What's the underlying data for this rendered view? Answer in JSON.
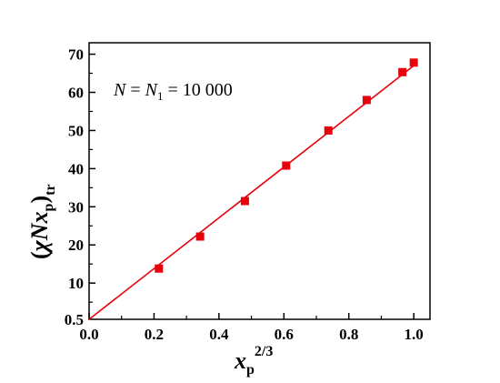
{
  "chart_data": {
    "type": "scatter",
    "xlabel": {
      "main": "x",
      "sub": "p",
      "sup": "2/3"
    },
    "ylabel": {
      "open": "(",
      "chi": "χ",
      "N": "N",
      "x": "x",
      "sub_p": "p",
      "close": ")",
      "sub_tr": "tr"
    },
    "annotation": {
      "N": "N",
      "eq1": " = ",
      "N1": "N",
      "sub1": "1",
      "eq2": " = 10 000"
    },
    "xlim": [
      0.0,
      1.05
    ],
    "ylim": [
      0.5,
      73
    ],
    "x_ticks": [
      "0.0",
      "0.2",
      "0.4",
      "0.6",
      "0.8",
      "1.0"
    ],
    "y_ticks": [
      "0.5",
      "10",
      "20",
      "30",
      "40",
      "50",
      "60",
      "70"
    ],
    "y_tick_values": [
      0.5,
      10,
      20,
      30,
      40,
      50,
      60,
      70
    ],
    "x_tick_values": [
      0.0,
      0.2,
      0.4,
      0.6,
      0.8,
      1.0
    ],
    "series": [
      {
        "marker": "square",
        "color": "#e8000b",
        "points": [
          {
            "x": 0.215,
            "y": 13.8
          },
          {
            "x": 0.342,
            "y": 22.2
          },
          {
            "x": 0.48,
            "y": 31.5
          },
          {
            "x": 0.607,
            "y": 40.8
          },
          {
            "x": 0.737,
            "y": 50.0
          },
          {
            "x": 0.855,
            "y": 58.0
          },
          {
            "x": 0.965,
            "y": 65.3
          },
          {
            "x": 1.0,
            "y": 67.8
          }
        ]
      }
    ],
    "fit_line": {
      "color": "#e8000b",
      "x": [
        0.0,
        1.0
      ],
      "y": [
        0.5,
        67.0
      ]
    }
  }
}
